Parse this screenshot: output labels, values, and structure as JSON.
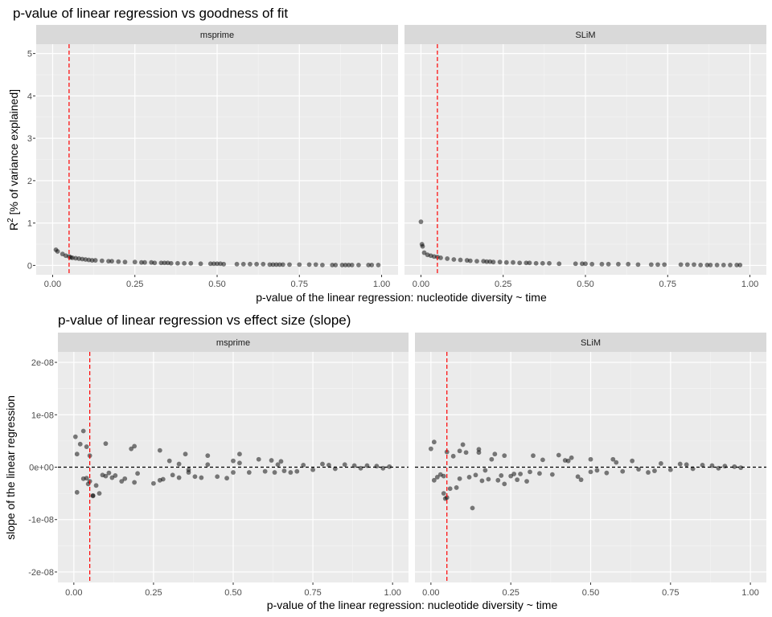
{
  "chart_data": [
    {
      "type": "scatter",
      "title": "p-value of linear regression vs goodness of fit",
      "xlabel": "p-value of the linear regression: nucleotide diversity ~ time",
      "ylabel": {
        "main": "R",
        "sup": "2",
        "rest": " [% of variance explained]"
      },
      "xlim": [
        -0.05,
        1.05
      ],
      "ylim": [
        -0.22,
        5.22
      ],
      "xticks": [
        0,
        0.25,
        0.5,
        0.75,
        1
      ],
      "xtick_labels": [
        "0.00",
        "0.25",
        "0.50",
        "0.75",
        "1.00"
      ],
      "yticks": [
        0,
        1,
        2,
        3,
        4,
        5
      ],
      "ytick_labels": [
        "0",
        "1",
        "2",
        "3",
        "4",
        "5"
      ],
      "vline": {
        "x": 0.05,
        "color": "#ff0000",
        "style": "dashed"
      },
      "grid": true,
      "panels": [
        {
          "name": "msprime",
          "x": [
            0.01,
            0.015,
            0.03,
            0.04,
            0.05,
            0.055,
            0.06,
            0.07,
            0.08,
            0.09,
            0.1,
            0.11,
            0.12,
            0.13,
            0.15,
            0.17,
            0.18,
            0.2,
            0.22,
            0.25,
            0.27,
            0.28,
            0.3,
            0.31,
            0.33,
            0.34,
            0.35,
            0.36,
            0.38,
            0.4,
            0.42,
            0.45,
            0.48,
            0.49,
            0.5,
            0.51,
            0.52,
            0.56,
            0.58,
            0.6,
            0.62,
            0.64,
            0.66,
            0.67,
            0.68,
            0.69,
            0.7,
            0.72,
            0.75,
            0.78,
            0.8,
            0.82,
            0.85,
            0.86,
            0.88,
            0.89,
            0.9,
            0.91,
            0.93,
            0.96,
            0.97,
            0.99
          ],
          "y": [
            0.37,
            0.33,
            0.27,
            0.23,
            0.21,
            0.19,
            0.18,
            0.17,
            0.16,
            0.15,
            0.14,
            0.13,
            0.12,
            0.12,
            0.11,
            0.1,
            0.1,
            0.09,
            0.08,
            0.08,
            0.07,
            0.07,
            0.07,
            0.06,
            0.06,
            0.06,
            0.06,
            0.05,
            0.05,
            0.05,
            0.05,
            0.04,
            0.04,
            0.04,
            0.04,
            0.04,
            0.03,
            0.03,
            0.03,
            0.03,
            0.03,
            0.03,
            0.02,
            0.02,
            0.02,
            0.02,
            0.02,
            0.02,
            0.02,
            0.02,
            0.02,
            0.01,
            0.01,
            0.01,
            0.01,
            0.01,
            0.01,
            0.01,
            0.01,
            0.01,
            0.01,
            0.01
          ]
        },
        {
          "name": "SLiM",
          "x": [
            0.0,
            0.003,
            0.005,
            0.01,
            0.02,
            0.03,
            0.04,
            0.05,
            0.06,
            0.08,
            0.1,
            0.12,
            0.14,
            0.15,
            0.17,
            0.19,
            0.2,
            0.21,
            0.22,
            0.24,
            0.26,
            0.28,
            0.3,
            0.32,
            0.33,
            0.35,
            0.37,
            0.39,
            0.42,
            0.47,
            0.49,
            0.5,
            0.52,
            0.55,
            0.57,
            0.6,
            0.63,
            0.66,
            0.7,
            0.72,
            0.74,
            0.79,
            0.81,
            0.83,
            0.85,
            0.87,
            0.88,
            0.9,
            0.92,
            0.94,
            0.96,
            0.97
          ],
          "y": [
            1.03,
            0.5,
            0.45,
            0.3,
            0.25,
            0.23,
            0.21,
            0.2,
            0.18,
            0.16,
            0.14,
            0.13,
            0.12,
            0.11,
            0.1,
            0.1,
            0.09,
            0.09,
            0.08,
            0.08,
            0.07,
            0.07,
            0.06,
            0.06,
            0.06,
            0.05,
            0.05,
            0.05,
            0.04,
            0.04,
            0.04,
            0.04,
            0.03,
            0.03,
            0.03,
            0.03,
            0.03,
            0.02,
            0.02,
            0.02,
            0.02,
            0.02,
            0.02,
            0.02,
            0.01,
            0.01,
            0.01,
            0.01,
            0.01,
            0.01,
            0.01,
            0.01
          ]
        }
      ]
    },
    {
      "type": "scatter",
      "title": "p-value of linear regression vs effect size (slope)",
      "xlabel": "p-value of the linear regression: nucleotide diversity ~ time",
      "ylabel": "slope of the linear regression",
      "xlim": [
        -0.05,
        1.05
      ],
      "ylim": [
        -2.2e-08,
        2.2e-08
      ],
      "xticks": [
        0,
        0.25,
        0.5,
        0.75,
        1
      ],
      "xtick_labels": [
        "0.00",
        "0.25",
        "0.50",
        "0.75",
        "1.00"
      ],
      "yticks": [
        -2e-08,
        -1e-08,
        0,
        1e-08,
        2e-08
      ],
      "ytick_labels": [
        "-2e-08",
        "-1e-08",
        "0e+00",
        "1e-08",
        "2e-08"
      ],
      "vline": {
        "x": 0.05,
        "color": "#ff0000",
        "style": "dashed"
      },
      "hline": {
        "y": 0,
        "color": "#000000",
        "style": "dashed"
      },
      "grid": true,
      "panels": [
        {
          "name": "msprime",
          "x": [
            0.005,
            0.01,
            0.01,
            0.02,
            0.03,
            0.04,
            0.04,
            0.045,
            0.05,
            0.05,
            0.06,
            0.07,
            0.08,
            0.09,
            0.1,
            0.11,
            0.12,
            0.13,
            0.15,
            0.16,
            0.18,
            0.19,
            0.2,
            0.25,
            0.27,
            0.28,
            0.3,
            0.31,
            0.33,
            0.35,
            0.36,
            0.38,
            0.4,
            0.42,
            0.45,
            0.48,
            0.5,
            0.5,
            0.52,
            0.55,
            0.58,
            0.6,
            0.62,
            0.63,
            0.64,
            0.65,
            0.66,
            0.68,
            0.7,
            0.72,
            0.75,
            0.78,
            0.8,
            0.82,
            0.85,
            0.88,
            0.9,
            0.92,
            0.95,
            0.97,
            0.99,
            0.1,
            0.19,
            0.27,
            0.36,
            0.42,
            0.03,
            0.06,
            0.33,
            0.52
          ],
          "y": [
            5.8e-09,
            2.5e-09,
            -4.8e-09,
            4.4e-09,
            6.9e-09,
            -2.1e-09,
            3.9e-09,
            -3.2e-09,
            -2.7e-09,
            2.2e-09,
            -5.4e-09,
            -3.5e-09,
            -5e-09,
            -1.5e-09,
            4.5e-09,
            -1.1e-09,
            -2e-09,
            -1.6e-09,
            -2.7e-09,
            -2.2e-09,
            3.5e-09,
            -2.9e-09,
            -1.2e-09,
            -3.1e-09,
            3.2e-09,
            -2.3e-09,
            1.2e-09,
            -1.5e-09,
            -2e-09,
            2.5e-09,
            -1e-09,
            -1.8e-09,
            -2e-09,
            2.2e-09,
            -1.8e-09,
            -2.1e-09,
            1.2e-09,
            -1e-09,
            2.5e-09,
            -1e-09,
            1.5e-09,
            -8e-10,
            1.3e-09,
            -1e-09,
            5e-10,
            1.1e-09,
            -7e-10,
            -1e-09,
            -8e-10,
            4e-10,
            -5e-10,
            6e-10,
            4e-10,
            -3e-10,
            5e-10,
            3e-10,
            -2e-10,
            3e-10,
            2e-10,
            -2e-10,
            1e-10,
            -1.7e-09,
            4e-09,
            -2.5e-09,
            -5e-10,
            5e-10,
            -2.2e-09,
            -5.5e-09,
            6e-10,
            8e-10
          ]
        },
        {
          "name": "SLiM",
          "x": [
            0.0,
            0.01,
            0.01,
            0.02,
            0.03,
            0.04,
            0.05,
            0.045,
            0.05,
            0.06,
            0.07,
            0.08,
            0.09,
            0.1,
            0.11,
            0.12,
            0.13,
            0.14,
            0.15,
            0.16,
            0.17,
            0.18,
            0.2,
            0.21,
            0.22,
            0.23,
            0.25,
            0.27,
            0.28,
            0.3,
            0.32,
            0.34,
            0.35,
            0.38,
            0.4,
            0.42,
            0.44,
            0.47,
            0.5,
            0.5,
            0.52,
            0.55,
            0.57,
            0.6,
            0.63,
            0.65,
            0.68,
            0.7,
            0.72,
            0.75,
            0.78,
            0.8,
            0.82,
            0.85,
            0.88,
            0.9,
            0.92,
            0.95,
            0.97,
            0.04,
            0.15,
            0.23,
            0.31,
            0.43,
            0.09,
            0.19,
            0.26,
            0.46,
            0.58
          ],
          "y": [
            3.5e-09,
            4.8e-09,
            -2.5e-09,
            -1.9e-09,
            -1.4e-09,
            -5e-09,
            -5.8e-09,
            -6e-09,
            2.9e-09,
            -4.1e-09,
            2.1e-09,
            -3.9e-09,
            -2.2e-09,
            4.3e-09,
            2.8e-09,
            -1.9e-09,
            -7.8e-09,
            -1.5e-09,
            3.4e-09,
            -2.6e-09,
            -6e-10,
            -2.3e-09,
            2.5e-09,
            -2.5e-09,
            -1.6e-09,
            2.2e-09,
            -1.7e-09,
            -2.4e-09,
            -1.3e-09,
            -2.7e-09,
            2.2e-09,
            -1.2e-09,
            1.4e-09,
            -1.4e-09,
            2.3e-09,
            1.3e-09,
            1.8e-09,
            -2.4e-09,
            1.5e-09,
            -9e-10,
            -6e-10,
            -1.1e-09,
            1.5e-09,
            -8e-10,
            1.2e-09,
            -4e-10,
            -1e-09,
            -7e-10,
            7e-10,
            -5e-10,
            6e-10,
            5e-10,
            -3e-10,
            4e-10,
            3e-10,
            -2e-10,
            2e-10,
            1e-10,
            -1e-10,
            -1.7e-09,
            2.8e-09,
            -3.2e-09,
            -9e-10,
            1.2e-09,
            3.1e-09,
            1.5e-09,
            -1.3e-09,
            -1.8e-09,
            9e-10
          ]
        }
      ]
    }
  ]
}
